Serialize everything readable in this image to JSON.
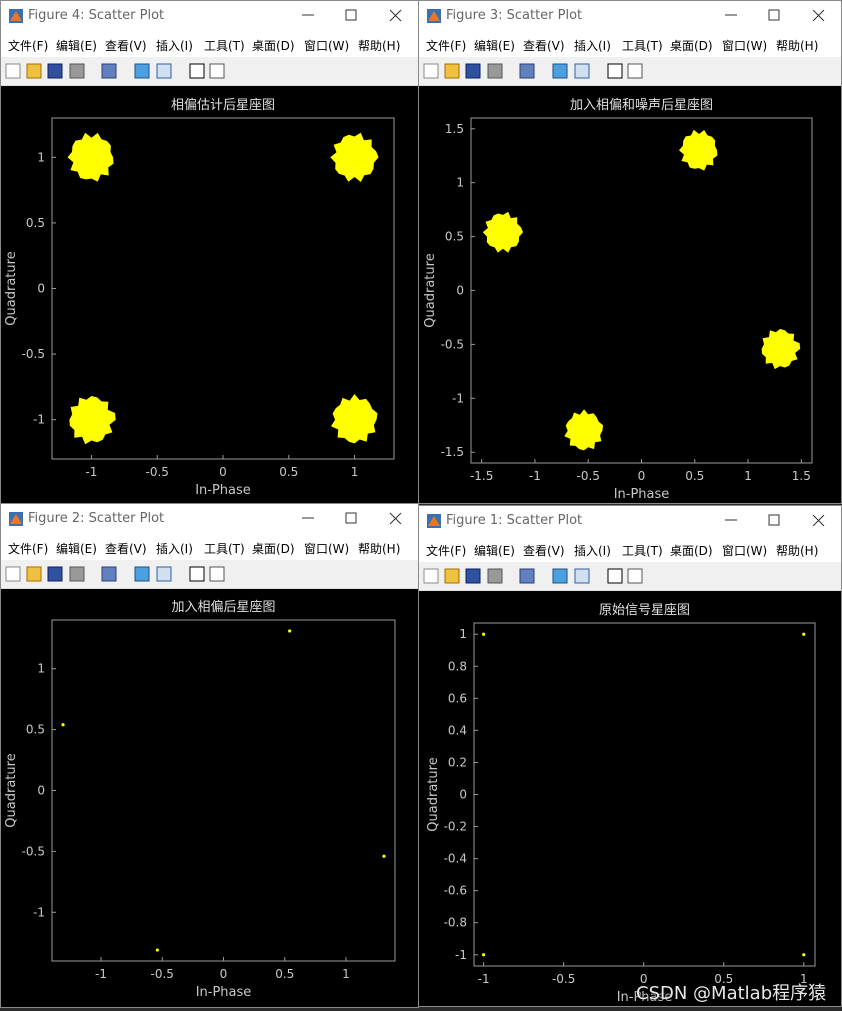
{
  "menu": [
    "文件(F)",
    "编辑(E)",
    "查看(V)",
    "插入(I)",
    "工具(T)",
    "桌面(D)",
    "窗口(W)",
    "帮助(H)"
  ],
  "watermark": "CSDN @Matlab程序猿",
  "windows": [
    {
      "title": "Figure 4: Scatter Plot",
      "chart": {
        "type": "scatter",
        "title": "相偏估计后星座图",
        "xlabel": "In-Phase",
        "ylabel": "Quadrature",
        "x": [
          -1,
          1,
          -1,
          1
        ],
        "y": [
          1,
          1,
          -1,
          -1
        ],
        "color": "#ffff00",
        "xlim": [
          -1.3,
          1.3
        ],
        "ylim": [
          -1.3,
          1.3
        ],
        "xticks": [
          -1,
          -0.5,
          0,
          0.5,
          1
        ],
        "yticks": [
          -1,
          -0.5,
          0,
          0.5,
          1
        ]
      }
    },
    {
      "title": "Figure 3: Scatter Plot",
      "chart": {
        "type": "scatter",
        "title": "加入相偏和噪声后星座图",
        "xlabel": "In-Phase",
        "ylabel": "Quadrature",
        "x": [
          0.54,
          -1.3,
          1.3,
          -0.54
        ],
        "y": [
          1.3,
          0.54,
          -0.54,
          -1.3
        ],
        "color": "#ffff00",
        "xlim": [
          -1.6,
          1.6
        ],
        "ylim": [
          -1.6,
          1.6
        ],
        "xticks": [
          -1.5,
          -1,
          -0.5,
          0,
          0.5,
          1,
          1.5
        ],
        "yticks": [
          -1.5,
          -1,
          -0.5,
          0,
          0.5,
          1,
          1.5
        ]
      }
    },
    {
      "title": "Figure 2: Scatter Plot",
      "chart": {
        "type": "scatter",
        "title": "加入相偏后星座图",
        "xlabel": "In-Phase",
        "ylabel": "Quadrature",
        "x": [
          0.54,
          -1.31,
          1.31,
          -0.54
        ],
        "y": [
          1.31,
          0.54,
          -0.54,
          -1.31
        ],
        "color": "#ffff00",
        "xlim": [
          -1.4,
          1.4
        ],
        "ylim": [
          -1.4,
          1.4
        ],
        "xticks": [
          -1,
          -0.5,
          0,
          0.5,
          1
        ],
        "yticks": [
          -1,
          -0.5,
          0,
          0.5,
          1
        ]
      }
    },
    {
      "title": "Figure 1: Scatter Plot",
      "chart": {
        "type": "scatter",
        "title": "原始信号星座图",
        "xlabel": "In-Phase",
        "ylabel": "Quadrature",
        "x": [
          -1,
          1,
          -1,
          1
        ],
        "y": [
          1,
          1,
          -1,
          -1
        ],
        "color": "#ffff00",
        "xlim": [
          -1.06,
          1.07
        ],
        "ylim": [
          -1.07,
          1.07
        ],
        "xticks": [
          -1,
          -0.5,
          0,
          0.5,
          1
        ],
        "yticks": [
          -1,
          -0.8,
          -0.6,
          -0.4,
          -0.2,
          0,
          0.2,
          0.4,
          0.6,
          0.8,
          1
        ]
      }
    }
  ]
}
